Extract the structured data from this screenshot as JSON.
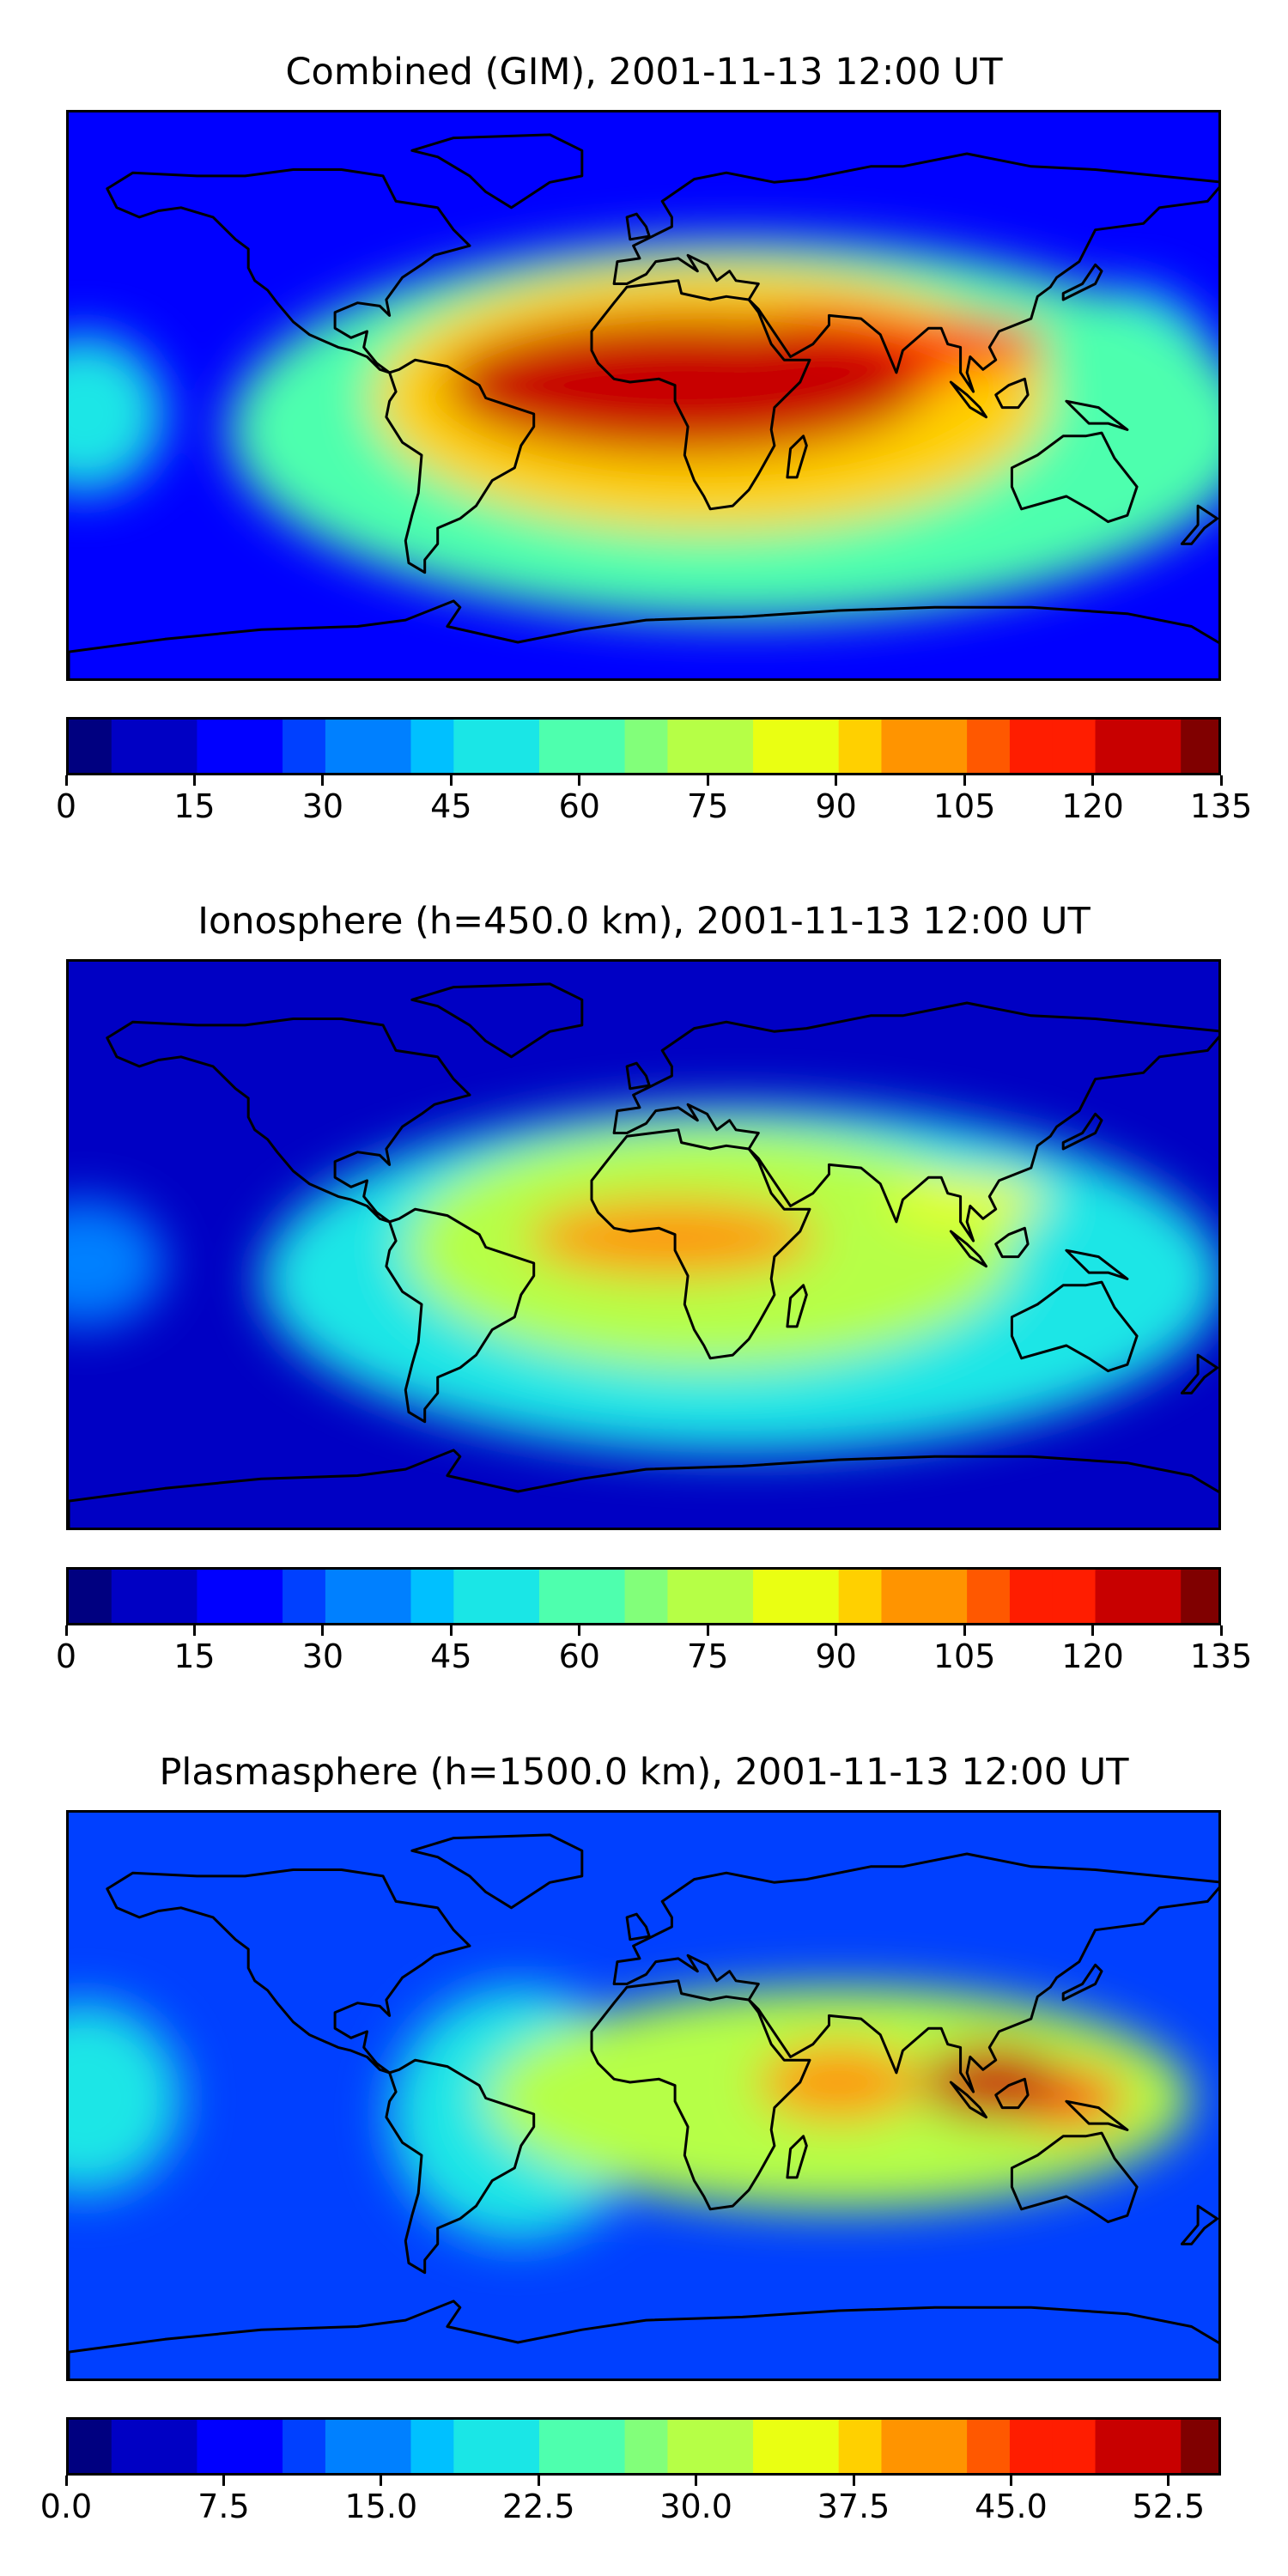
{
  "panels": [
    {
      "title": "Combined (GIM), 2001-11-13 12:00 UT",
      "ticks": [
        "0",
        "15",
        "30",
        "45",
        "60",
        "75",
        "90",
        "105",
        "120",
        "135"
      ],
      "vmax": 135,
      "blobs": [
        {
          "lon": 12,
          "lat": 4,
          "rx": 75,
          "ry": 22,
          "value": 128
        },
        {
          "lon": 58,
          "lat": 12,
          "rx": 40,
          "ry": 16,
          "value": 122
        },
        {
          "lon": 100,
          "lat": 17,
          "rx": 25,
          "ry": 8,
          "value": 120
        },
        {
          "lon": 20,
          "lat": 0,
          "rx": 105,
          "ry": 42,
          "value": 95
        },
        {
          "lon": -50,
          "lat": -5,
          "rx": 30,
          "ry": 20,
          "value": 82
        },
        {
          "lon": 30,
          "lat": -10,
          "rx": 160,
          "ry": 60,
          "value": 60
        },
        {
          "lon": -175,
          "lat": -5,
          "rx": 25,
          "ry": 25,
          "value": 55
        },
        {
          "lon": 150,
          "lat": 0,
          "rx": 30,
          "ry": 35,
          "value": 55
        }
      ],
      "background": 22
    },
    {
      "title": "Ionosphere  (h=450.0 km), 2001-11-13 12:00 UT",
      "ticks": [
        "0",
        "15",
        "30",
        "45",
        "60",
        "75",
        "90",
        "105",
        "120",
        "135"
      ],
      "vmax": 135,
      "blobs": [
        {
          "lon": 8,
          "lat": 3,
          "rx": 45,
          "ry": 12,
          "value": 100
        },
        {
          "lon": 100,
          "lat": 15,
          "rx": 25,
          "ry": 8,
          "value": 88
        },
        {
          "lon": 20,
          "lat": 0,
          "rx": 95,
          "ry": 38,
          "value": 80
        },
        {
          "lon": 30,
          "lat": -10,
          "rx": 150,
          "ry": 55,
          "value": 50
        },
        {
          "lon": -175,
          "lat": -5,
          "rx": 25,
          "ry": 20,
          "value": 42
        }
      ],
      "background": 15
    },
    {
      "title": "Plasmasphere (h=1500.0 km), 2001-11-13 12:00 UT",
      "ticks": [
        "0.0",
        "7.5",
        "15.0",
        "22.5",
        "30.0",
        "37.5",
        "45.0",
        "52.5"
      ],
      "vmax": 55,
      "blobs": [
        {
          "lon": 108,
          "lat": 5,
          "rx": 22,
          "ry": 12,
          "value": 54
        },
        {
          "lon": 130,
          "lat": 0,
          "rx": 20,
          "ry": 10,
          "value": 47
        },
        {
          "lon": 60,
          "lat": 5,
          "rx": 25,
          "ry": 12,
          "value": 40
        },
        {
          "lon": 10,
          "lat": 0,
          "rx": 30,
          "ry": 18,
          "value": 33
        },
        {
          "lon": 60,
          "lat": 0,
          "rx": 110,
          "ry": 35,
          "value": 30
        },
        {
          "lon": -175,
          "lat": 0,
          "rx": 30,
          "ry": 30,
          "value": 22
        },
        {
          "lon": -40,
          "lat": -5,
          "rx": 40,
          "ry": 40,
          "value": 20
        }
      ],
      "background": 12
    }
  ],
  "colors": {
    "jet": [
      "#000080",
      "#0000c4",
      "#0000ff",
      "#0040ff",
      "#0080ff",
      "#00c0ff",
      "#1ae6e6",
      "#4effae",
      "#82ff7a",
      "#b6ff46",
      "#eaff12",
      "#ffd000",
      "#ff9400",
      "#ff5800",
      "#ff1d00",
      "#c80000",
      "#800000"
    ],
    "coast": "#000000"
  }
}
